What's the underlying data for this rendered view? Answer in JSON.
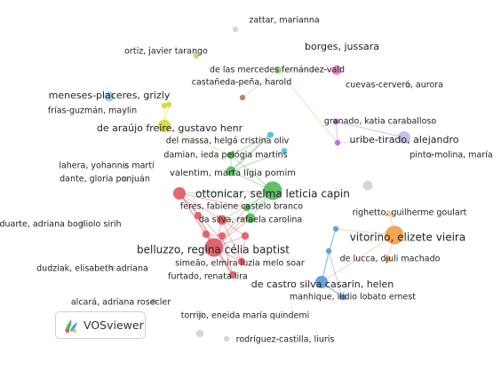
{
  "app": {
    "logo_text": "VOSviewer",
    "logo_icon": "vosviewer-logo-icon"
  },
  "clusters": {
    "red": "#e05a66",
    "green": "#58b860",
    "blue": "#5b9ad8",
    "yellow": "#d6d83a",
    "purple": "#b56ad4",
    "cyan": "#4cc6d6",
    "orange": "#f0a04a",
    "pink": "#e57fc4",
    "lime": "#9ed67a",
    "brown": "#b07a6a",
    "lightblue": "#9ec7ea",
    "lavender": "#c7b8e8",
    "gray": "#d3d3d3",
    "peach": "#f5c89a",
    "olive": "#c8d870"
  },
  "nodes": [
    {
      "id": "zattar",
      "label": "zattar, marianna",
      "cluster": "gray",
      "size": 2
    },
    {
      "id": "borges",
      "label": "borges, jussara",
      "cluster": "pink",
      "size": 4
    },
    {
      "id": "ortiz",
      "label": "ortiz, javier tarango",
      "cluster": "olive",
      "size": 2
    },
    {
      "id": "delasmercedes",
      "label": "de las mercedes fernández-vald",
      "cluster": "lime",
      "size": 3
    },
    {
      "id": "castaneda",
      "label": "castañeda-peña, harold",
      "cluster": "brown",
      "size": 2
    },
    {
      "id": "cuevas",
      "label": "cuevas-cerveró, aurora",
      "cluster": "gray",
      "size": 2
    },
    {
      "id": "meneses",
      "label": "meneses-placeres, grizly",
      "cluster": "lightblue",
      "size": 4
    },
    {
      "id": "frias",
      "label": "frías-guzmán, maylin",
      "cluster": "yellow",
      "size": 2
    },
    {
      "id": "dearaujo",
      "label": "de araújo freire, gustavo henr",
      "cluster": "yellow",
      "size": 5
    },
    {
      "id": "granado",
      "label": "granado, katia caraballoso",
      "cluster": "purple",
      "size": 2
    },
    {
      "id": "uribe",
      "label": "uribe-tirado, alejandro",
      "cluster": "lavender",
      "size": 5
    },
    {
      "id": "delmassa",
      "label": "del massa, helgá cristina oliv",
      "cluster": "cyan",
      "size": 2
    },
    {
      "id": "pinto",
      "label": "pinto-molina, maría",
      "cluster": "gray",
      "size": 2
    },
    {
      "id": "damian",
      "label": "damian, ieda pelógia martins",
      "cluster": "green",
      "size": 3
    },
    {
      "id": "lahera",
      "label": "lahera, yohannis martí",
      "cluster": "gray",
      "size": 2
    },
    {
      "id": "valentim",
      "label": "valentim, marta lígia pomim",
      "cluster": "green",
      "size": 4
    },
    {
      "id": "dante",
      "label": "dante, gloria ponjuán",
      "cluster": "gray",
      "size": 2
    },
    {
      "id": "ottonicar",
      "label": "ottonicar, selma leticia capin",
      "cluster": "green",
      "size": 7
    },
    {
      "id": "feres",
      "label": "feres, fabiene castelo branco",
      "cluster": "green",
      "size": 3
    },
    {
      "id": "righetto",
      "label": "righetto, guilherme goulart",
      "cluster": "peach",
      "size": 2
    },
    {
      "id": "dasilva",
      "label": "da silva, rafaela carolina",
      "cluster": "green",
      "size": 4
    },
    {
      "id": "duarte",
      "label": "duarte, adriana bogliolo sirih",
      "cluster": "gray",
      "size": 2
    },
    {
      "id": "vitorino",
      "label": "vitorino, elizete vieira",
      "cluster": "orange",
      "size": 7
    },
    {
      "id": "belluzzo",
      "label": "belluzzo, regina célia baptist",
      "cluster": "red",
      "size": 7
    },
    {
      "id": "delucca",
      "label": "de lucca, djuli machado",
      "cluster": "orange",
      "size": 2
    },
    {
      "id": "simeao",
      "label": "simeão, elmira luzia melo soar",
      "cluster": "red",
      "size": 3
    },
    {
      "id": "dudziak",
      "label": "dudziak, elisabeth adriana",
      "cluster": "gray",
      "size": 2
    },
    {
      "id": "furtado",
      "label": "furtado, renata lira",
      "cluster": "red",
      "size": 3
    },
    {
      "id": "decastro",
      "label": "de castro silva casarin, helen",
      "cluster": "blue",
      "size": 5
    },
    {
      "id": "manhique",
      "label": "manhique, ilídio lobato ernest",
      "cluster": "blue",
      "size": 2
    },
    {
      "id": "alcara",
      "label": "alcará, adriana rosecler",
      "cluster": "lightblue",
      "size": 2
    },
    {
      "id": "torrijo",
      "label": "torrijo, eneida maría quindemi",
      "cluster": "gray",
      "size": 2
    },
    {
      "id": "rodriguez",
      "label": "rodríguez-castilla, liuris",
      "cluster": "gray",
      "size": 2
    }
  ],
  "unlabeled_nodes": [
    {
      "cluster": "peach",
      "size": 2
    },
    {
      "cluster": "red",
      "size": 5
    },
    {
      "cluster": "red",
      "size": 3
    },
    {
      "cluster": "red",
      "size": 4
    },
    {
      "cluster": "red",
      "size": 3
    },
    {
      "cluster": "red",
      "size": 3
    },
    {
      "cluster": "red",
      "size": 3
    },
    {
      "cluster": "gray",
      "size": 4
    },
    {
      "cluster": "cyan",
      "size": 2
    },
    {
      "cluster": "cyan",
      "size": 2
    },
    {
      "cluster": "blue",
      "size": 2
    },
    {
      "cluster": "blue",
      "size": 2
    },
    {
      "cluster": "blue",
      "size": 2
    },
    {
      "cluster": "purple",
      "size": 2
    },
    {
      "cluster": "yellow",
      "size": 2
    },
    {
      "cluster": "gray",
      "size": 3
    }
  ],
  "links": [
    [
      "borges",
      "delasmercedes"
    ],
    [
      "delasmercedes",
      "castaneda"
    ],
    [
      "delasmercedes",
      "u13"
    ],
    [
      "dearaujo",
      "u14"
    ],
    [
      "dearaujo",
      "damian"
    ],
    [
      "dearaujo",
      "frias"
    ],
    [
      "granado",
      "uribe"
    ],
    [
      "uribe",
      "u13"
    ],
    [
      "granado",
      "u13"
    ],
    [
      "valentim",
      "damian"
    ],
    [
      "valentim",
      "ottonicar"
    ],
    [
      "valentim",
      "delmassa"
    ],
    [
      "valentim",
      "u8"
    ],
    [
      "valentim",
      "u9"
    ],
    [
      "damian",
      "delmassa"
    ],
    [
      "ottonicar",
      "feres"
    ],
    [
      "ottonicar",
      "dasilva"
    ],
    [
      "ottonicar",
      "belluzzo"
    ],
    [
      "ottonicar",
      "u1"
    ],
    [
      "ottonicar",
      "u3"
    ],
    [
      "ottonicar",
      "damian"
    ],
    [
      "belluzzo",
      "u1"
    ],
    [
      "belluzzo",
      "u2"
    ],
    [
      "belluzzo",
      "u3"
    ],
    [
      "belluzzo",
      "u4"
    ],
    [
      "belluzzo",
      "u5"
    ],
    [
      "belluzzo",
      "u6"
    ],
    [
      "belluzzo",
      "simeao"
    ],
    [
      "belluzzo",
      "furtado"
    ],
    [
      "belluzzo",
      "feres"
    ],
    [
      "belluzzo",
      "dasilva"
    ],
    [
      "u1",
      "u3"
    ],
    [
      "u1",
      "u2"
    ],
    [
      "u1",
      "simeao"
    ],
    [
      "u1",
      "furtado"
    ],
    [
      "u1",
      "feres"
    ],
    [
      "u3",
      "dasilva"
    ],
    [
      "u3",
      "simeao"
    ],
    [
      "u3",
      "u5"
    ],
    [
      "u4",
      "u6"
    ],
    [
      "u2",
      "furtado"
    ],
    [
      "u5",
      "simeao"
    ],
    [
      "feres",
      "dasilva"
    ],
    [
      "u4",
      "furtado"
    ],
    [
      "vitorino",
      "u0"
    ],
    [
      "vitorino",
      "delucca"
    ],
    [
      "vitorino",
      "u10"
    ],
    [
      "vitorino",
      "decastro"
    ],
    [
      "decastro",
      "u10"
    ],
    [
      "decastro",
      "u11"
    ],
    [
      "decastro",
      "manhique"
    ],
    [
      "u10",
      "u12"
    ],
    [
      "u12",
      "u11"
    ],
    [
      "u12",
      "decastro"
    ],
    [
      "u11",
      "manhique"
    ]
  ]
}
